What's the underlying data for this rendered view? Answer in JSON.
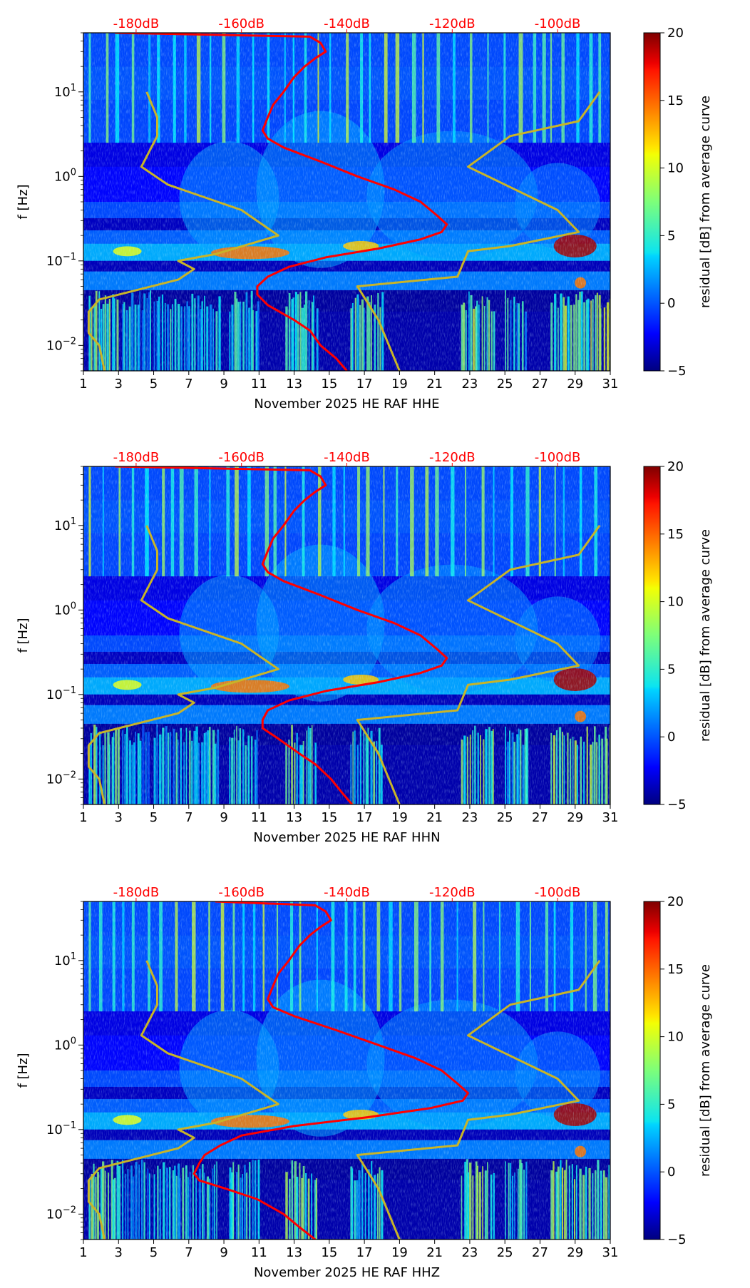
{
  "chart_data": [
    {
      "type": "heatmap",
      "xlabel": "November 2025 HE RAF  HHE",
      "ylabel": "f [Hz]",
      "colorbar_label": "residual [dB] from average curve",
      "x_ticks": [
        "1",
        "3",
        "5",
        "7",
        "9",
        "11",
        "13",
        "15",
        "17",
        "19",
        "21",
        "23",
        "25",
        "27",
        "29",
        "31"
      ],
      "y_ticks": [
        "10^-2",
        "10^-1",
        "10^0",
        "10^1"
      ],
      "top_ticks": [
        "-180dB",
        "-160dB",
        "-140dB",
        "-120dB",
        "-100dB"
      ],
      "colorbar_ticks": [
        "-5",
        "0",
        "5",
        "10",
        "15",
        "20"
      ],
      "xlim": [
        1,
        31
      ],
      "ylim": [
        0.005,
        50
      ],
      "top_lim": [
        -190,
        -90
      ],
      "clim": [
        -5,
        20
      ],
      "yscale": "log",
      "colormap": "jet",
      "series": [
        {
          "color": "#ff0000",
          "x_unit": "dB",
          "points": [
            [
              -184,
              50
            ],
            [
              -147,
              45
            ],
            [
              -145,
              38
            ],
            [
              -144,
              30
            ],
            [
              -146,
              25
            ],
            [
              -148,
              20
            ],
            [
              -150,
              15
            ],
            [
              -152,
              10
            ],
            [
              -154,
              7
            ],
            [
              -155,
              5
            ],
            [
              -156,
              3.5
            ],
            [
              -155,
              2.8
            ],
            [
              -152,
              2.2
            ],
            [
              -145,
              1.5
            ],
            [
              -138,
              1.0
            ],
            [
              -131,
              0.7
            ],
            [
              -126,
              0.5
            ],
            [
              -123,
              0.35
            ],
            [
              -121,
              0.27
            ],
            [
              -122,
              0.22
            ],
            [
              -126,
              0.18
            ],
            [
              -134,
              0.14
            ],
            [
              -144,
              0.11
            ],
            [
              -151,
              0.085
            ],
            [
              -155,
              0.065
            ],
            [
              -157,
              0.05
            ],
            [
              -157,
              0.04
            ],
            [
              -155,
              0.03
            ],
            [
              -150,
              0.02
            ],
            [
              -147,
              0.015
            ],
            [
              -145,
              0.01
            ],
            [
              -142,
              0.007
            ],
            [
              -140,
              0.005
            ]
          ]
        },
        {
          "color": "#c8b428",
          "x_unit": "dB",
          "points": [
            [
              -178,
              10
            ],
            [
              -176,
              5
            ],
            [
              -176,
              3
            ],
            [
              -179,
              1.3
            ],
            [
              -174,
              0.8
            ],
            [
              -160,
              0.4
            ],
            [
              -153,
              0.2
            ],
            [
              -165,
              0.12
            ],
            [
              -172,
              0.1
            ],
            [
              -169,
              0.08
            ],
            [
              -172,
              0.06
            ],
            [
              -180,
              0.045
            ],
            [
              -187,
              0.035
            ],
            [
              -189,
              0.025
            ],
            [
              -189,
              0.014
            ],
            [
              -187,
              0.01
            ],
            [
              -186,
              0.005
            ]
          ]
        },
        {
          "color": "#c8b428",
          "x_unit": "dB",
          "points": [
            [
              -92,
              10
            ],
            [
              -96,
              4.5
            ],
            [
              -109,
              3
            ],
            [
              -117,
              1.3
            ],
            [
              -110,
              0.8
            ],
            [
              -100,
              0.4
            ],
            [
              -96,
              0.22
            ],
            [
              -109,
              0.15
            ],
            [
              -117,
              0.13
            ],
            [
              -119,
              0.065
            ],
            [
              -138,
              0.05
            ],
            [
              -134,
              0.02
            ],
            [
              -130,
              0.005
            ]
          ]
        }
      ]
    },
    {
      "type": "heatmap",
      "xlabel": "November 2025 HE RAF  HHN",
      "ylabel": "f [Hz]",
      "colorbar_label": "residual [dB] from average curve",
      "x_ticks": [
        "1",
        "3",
        "5",
        "7",
        "9",
        "11",
        "13",
        "15",
        "17",
        "19",
        "21",
        "23",
        "25",
        "27",
        "29",
        "31"
      ],
      "y_ticks": [
        "10^-2",
        "10^-1",
        "10^0",
        "10^1"
      ],
      "top_ticks": [
        "-180dB",
        "-160dB",
        "-140dB",
        "-120dB",
        "-100dB"
      ],
      "colorbar_ticks": [
        "-5",
        "0",
        "5",
        "10",
        "15",
        "20"
      ],
      "xlim": [
        1,
        31
      ],
      "ylim": [
        0.005,
        50
      ],
      "top_lim": [
        -190,
        -90
      ],
      "clim": [
        -5,
        20
      ],
      "yscale": "log",
      "colormap": "jet",
      "series": [
        {
          "color": "#ff0000",
          "x_unit": "dB",
          "points": [
            [
              -184,
              50
            ],
            [
              -147,
              45
            ],
            [
              -145,
              38
            ],
            [
              -144,
              30
            ],
            [
              -146,
              25
            ],
            [
              -148,
              20
            ],
            [
              -150,
              15
            ],
            [
              -152,
              10
            ],
            [
              -154,
              7
            ],
            [
              -155,
              5
            ],
            [
              -156,
              3.5
            ],
            [
              -155,
              2.8
            ],
            [
              -152,
              2.2
            ],
            [
              -145,
              1.5
            ],
            [
              -138,
              1.0
            ],
            [
              -131,
              0.7
            ],
            [
              -126,
              0.5
            ],
            [
              -123,
              0.35
            ],
            [
              -121,
              0.27
            ],
            [
              -122,
              0.22
            ],
            [
              -126,
              0.18
            ],
            [
              -134,
              0.14
            ],
            [
              -144,
              0.11
            ],
            [
              -151,
              0.085
            ],
            [
              -155,
              0.065
            ],
            [
              -156,
              0.05
            ],
            [
              -156,
              0.04
            ],
            [
              -153,
              0.03
            ],
            [
              -149,
              0.02
            ],
            [
              -146,
              0.015
            ],
            [
              -143,
              0.01
            ],
            [
              -141,
              0.007
            ],
            [
              -139,
              0.005
            ]
          ]
        },
        {
          "color": "#c8b428",
          "x_unit": "dB",
          "points": [
            [
              -178,
              10
            ],
            [
              -176,
              5
            ],
            [
              -176,
              3
            ],
            [
              -179,
              1.3
            ],
            [
              -174,
              0.8
            ],
            [
              -160,
              0.4
            ],
            [
              -153,
              0.2
            ],
            [
              -165,
              0.12
            ],
            [
              -172,
              0.1
            ],
            [
              -169,
              0.08
            ],
            [
              -172,
              0.06
            ],
            [
              -180,
              0.045
            ],
            [
              -187,
              0.035
            ],
            [
              -189,
              0.025
            ],
            [
              -189,
              0.014
            ],
            [
              -187,
              0.01
            ],
            [
              -186,
              0.005
            ]
          ]
        },
        {
          "color": "#c8b428",
          "x_unit": "dB",
          "points": [
            [
              -92,
              10
            ],
            [
              -96,
              4.5
            ],
            [
              -109,
              3
            ],
            [
              -117,
              1.3
            ],
            [
              -110,
              0.8
            ],
            [
              -100,
              0.4
            ],
            [
              -96,
              0.22
            ],
            [
              -109,
              0.15
            ],
            [
              -117,
              0.13
            ],
            [
              -119,
              0.065
            ],
            [
              -138,
              0.05
            ],
            [
              -134,
              0.02
            ],
            [
              -130,
              0.005
            ]
          ]
        }
      ]
    },
    {
      "type": "heatmap",
      "xlabel": "November 2025 HE RAF  HHZ",
      "ylabel": "f [Hz]",
      "colorbar_label": "residual [dB] from average curve",
      "x_ticks": [
        "1",
        "3",
        "5",
        "7",
        "9",
        "11",
        "13",
        "15",
        "17",
        "19",
        "21",
        "23",
        "25",
        "27",
        "29",
        "31"
      ],
      "y_ticks": [
        "10^-2",
        "10^-1",
        "10^0",
        "10^1"
      ],
      "top_ticks": [
        "-180dB",
        "-160dB",
        "-140dB",
        "-120dB",
        "-100dB"
      ],
      "colorbar_ticks": [
        "-5",
        "0",
        "5",
        "10",
        "15",
        "20"
      ],
      "xlim": [
        1,
        31
      ],
      "ylim": [
        0.005,
        50
      ],
      "top_lim": [
        -190,
        -90
      ],
      "clim": [
        -5,
        20
      ],
      "yscale": "log",
      "colormap": "jet",
      "series": [
        {
          "color": "#ff0000",
          "x_unit": "dB",
          "points": [
            [
              -165,
              50
            ],
            [
              -146,
              45
            ],
            [
              -144,
              38
            ],
            [
              -143,
              30
            ],
            [
              -145,
              25
            ],
            [
              -147,
              20
            ],
            [
              -149,
              15
            ],
            [
              -151,
              10
            ],
            [
              -153,
              7
            ],
            [
              -154,
              5
            ],
            [
              -155,
              3.5
            ],
            [
              -154,
              2.8
            ],
            [
              -150,
              2.2
            ],
            [
              -142,
              1.5
            ],
            [
              -134,
              1.0
            ],
            [
              -127,
              0.7
            ],
            [
              -122,
              0.5
            ],
            [
              -119,
              0.35
            ],
            [
              -117,
              0.27
            ],
            [
              -118,
              0.22
            ],
            [
              -124,
              0.18
            ],
            [
              -136,
              0.14
            ],
            [
              -150,
              0.11
            ],
            [
              -160,
              0.085
            ],
            [
              -164,
              0.065
            ],
            [
              -167,
              0.05
            ],
            [
              -168,
              0.04
            ],
            [
              -169,
              0.03
            ],
            [
              -168,
              0.025
            ],
            [
              -163,
              0.02
            ],
            [
              -157,
              0.015
            ],
            [
              -152,
              0.01
            ],
            [
              -149,
              0.007
            ],
            [
              -146,
              0.005
            ]
          ]
        },
        {
          "color": "#c8b428",
          "x_unit": "dB",
          "points": [
            [
              -178,
              10
            ],
            [
              -176,
              5
            ],
            [
              -176,
              3
            ],
            [
              -179,
              1.3
            ],
            [
              -174,
              0.8
            ],
            [
              -160,
              0.4
            ],
            [
              -153,
              0.2
            ],
            [
              -165,
              0.12
            ],
            [
              -172,
              0.1
            ],
            [
              -169,
              0.08
            ],
            [
              -172,
              0.06
            ],
            [
              -180,
              0.045
            ],
            [
              -187,
              0.035
            ],
            [
              -189,
              0.025
            ],
            [
              -189,
              0.014
            ],
            [
              -187,
              0.01
            ],
            [
              -186,
              0.005
            ]
          ]
        },
        {
          "color": "#c8b428",
          "x_unit": "dB",
          "points": [
            [
              -92,
              10
            ],
            [
              -96,
              4.5
            ],
            [
              -109,
              3
            ],
            [
              -117,
              1.3
            ],
            [
              -110,
              0.8
            ],
            [
              -100,
              0.4
            ],
            [
              -96,
              0.22
            ],
            [
              -109,
              0.15
            ],
            [
              -117,
              0.13
            ],
            [
              -119,
              0.065
            ],
            [
              -138,
              0.05
            ],
            [
              -134,
              0.02
            ],
            [
              -130,
              0.005
            ]
          ]
        }
      ]
    }
  ]
}
